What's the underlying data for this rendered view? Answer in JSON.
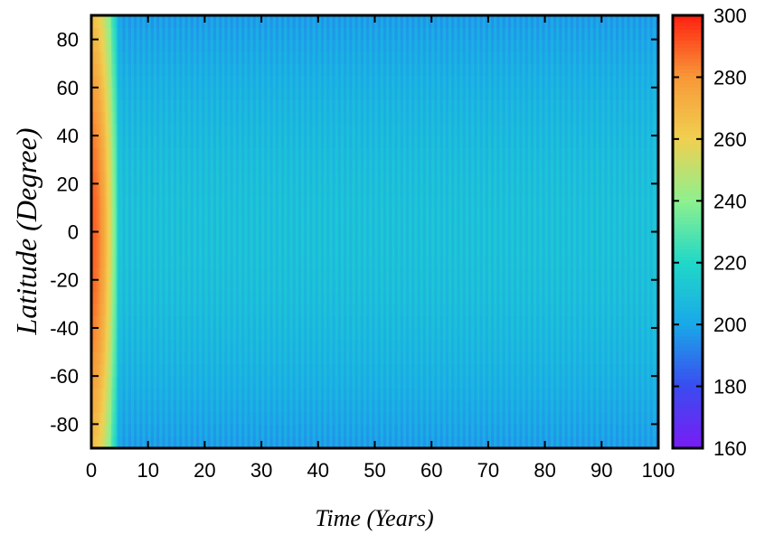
{
  "chart_data": {
    "type": "heatmap",
    "title": "",
    "xlabel": "Time (Years)",
    "ylabel": "Latitude (Degree)",
    "xlim": [
      0,
      100
    ],
    "ylim": [
      -90,
      90
    ],
    "x_ticks": [
      0,
      10,
      20,
      30,
      40,
      50,
      60,
      70,
      80,
      90,
      100
    ],
    "y_ticks": [
      -80,
      -60,
      -40,
      -20,
      0,
      20,
      40,
      60,
      80
    ],
    "colorbar": {
      "range": [
        160,
        300
      ],
      "ticks": [
        160,
        180,
        200,
        220,
        240,
        260,
        280,
        300
      ],
      "colors": [
        "#7a1cf5",
        "#3a4cf0",
        "#1aa8e8",
        "#20d8c8",
        "#8ef08e",
        "#f0d050",
        "#f89838",
        "#ff2010"
      ]
    },
    "grid": false,
    "description_values": {
      "initial_equator_temperature": 290,
      "initial_pole_temperature": 265,
      "transient_end_year": 5,
      "steady_state_equator_temperature": 210,
      "steady_state_pole_temperature": 198,
      "seasonal_oscillation_period_years": 1,
      "seasonal_oscillation_amplitude": 8
    }
  }
}
